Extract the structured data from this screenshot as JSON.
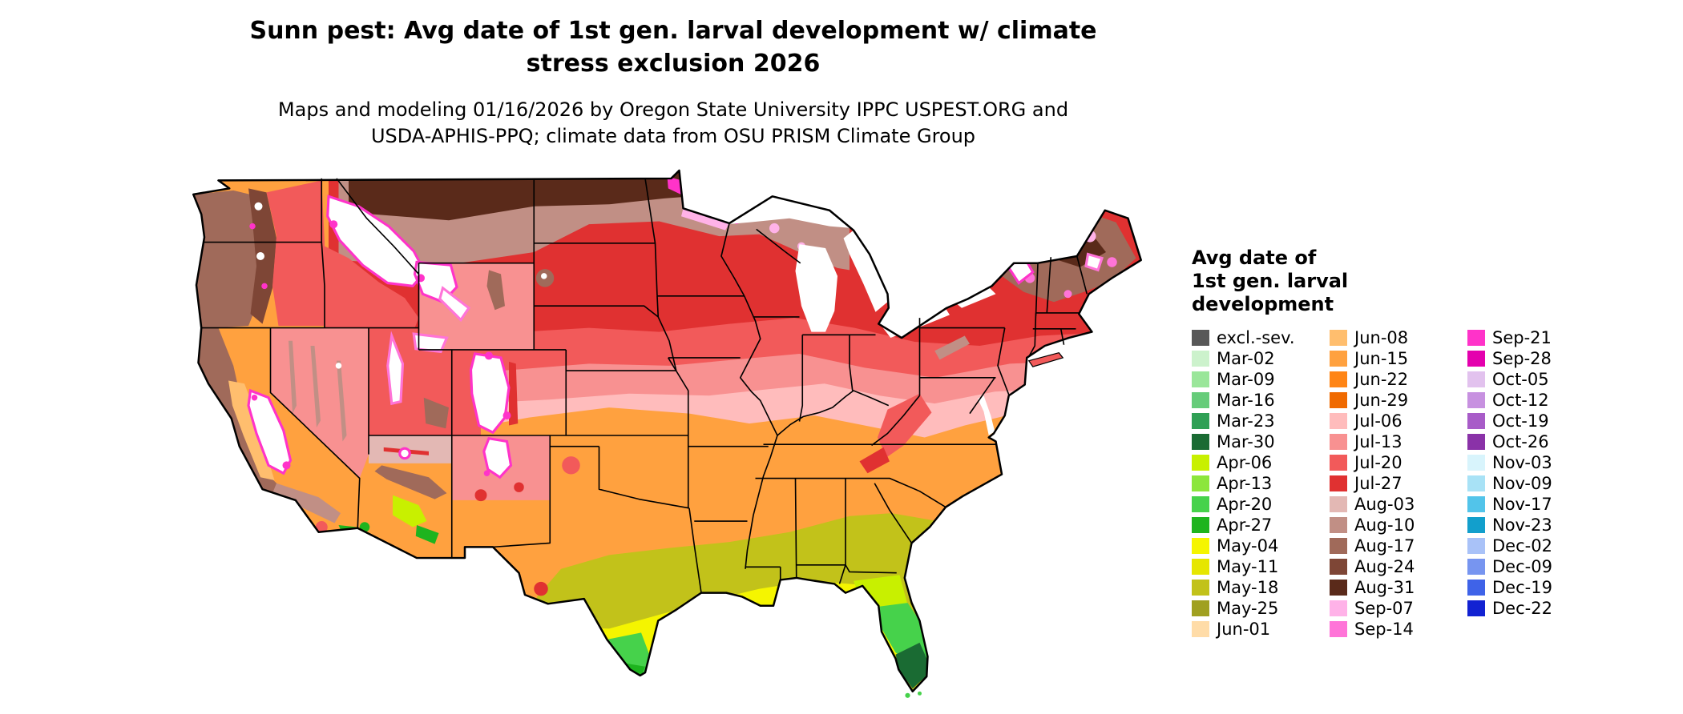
{
  "header": {
    "title_lines": [
      "Sunn pest: Avg date of 1st gen. larval development w/ climate",
      "stress exclusion 2026"
    ],
    "subtitle_lines": [
      "Maps and modeling 01/16/2026 by Oregon State University IPPC USPEST.ORG and",
      "USDA-APHIS-PPQ; climate data from OSU PRISM Climate Group"
    ]
  },
  "legend": {
    "title_lines": [
      "Avg date of",
      "1st gen. larval",
      "development"
    ],
    "columns": [
      {
        "items": [
          {
            "label": "excl.-sev.",
            "key": "excl_sev"
          },
          {
            "label": "Mar-02",
            "key": "mar02"
          },
          {
            "label": "Mar-09",
            "key": "mar09"
          },
          {
            "label": "Mar-16",
            "key": "mar16"
          },
          {
            "label": "Mar-23",
            "key": "mar23"
          },
          {
            "label": "Mar-30",
            "key": "mar30"
          },
          {
            "label": "Apr-06",
            "key": "apr06"
          },
          {
            "label": "Apr-13",
            "key": "apr13"
          },
          {
            "label": "Apr-20",
            "key": "apr20"
          },
          {
            "label": "Apr-27",
            "key": "apr27"
          },
          {
            "label": "May-04",
            "key": "may04"
          },
          {
            "label": "May-11",
            "key": "may11"
          },
          {
            "label": "May-18",
            "key": "may18"
          },
          {
            "label": "May-25",
            "key": "may25"
          },
          {
            "label": "Jun-01",
            "key": "jun01"
          }
        ]
      },
      {
        "items": [
          {
            "label": "Jun-08",
            "key": "jun08"
          },
          {
            "label": "Jun-15",
            "key": "jun15"
          },
          {
            "label": "Jun-22",
            "key": "jun22"
          },
          {
            "label": "Jun-29",
            "key": "jun29"
          },
          {
            "label": "Jul-06",
            "key": "jul06"
          },
          {
            "label": "Jul-13",
            "key": "jul13"
          },
          {
            "label": "Jul-20",
            "key": "jul20"
          },
          {
            "label": "Jul-27",
            "key": "jul27"
          },
          {
            "label": "Aug-03",
            "key": "aug03"
          },
          {
            "label": "Aug-10",
            "key": "aug10"
          },
          {
            "label": "Aug-17",
            "key": "aug17"
          },
          {
            "label": "Aug-24",
            "key": "aug24"
          },
          {
            "label": "Aug-31",
            "key": "aug31"
          },
          {
            "label": "Sep-07",
            "key": "sep07"
          },
          {
            "label": "Sep-14",
            "key": "sep14"
          }
        ]
      },
      {
        "items": [
          {
            "label": "Sep-21",
            "key": "sep21"
          },
          {
            "label": "Sep-28",
            "key": "sep28"
          },
          {
            "label": "Oct-05",
            "key": "oct05"
          },
          {
            "label": "Oct-12",
            "key": "oct12"
          },
          {
            "label": "Oct-19",
            "key": "oct19"
          },
          {
            "label": "Oct-26",
            "key": "oct26"
          },
          {
            "label": "Nov-03",
            "key": "nov03"
          },
          {
            "label": "Nov-09",
            "key": "nov09"
          },
          {
            "label": "Nov-17",
            "key": "nov17"
          },
          {
            "label": "Nov-23",
            "key": "nov23"
          },
          {
            "label": "Dec-02",
            "key": "dec02"
          },
          {
            "label": "Dec-09",
            "key": "dec09"
          },
          {
            "label": "Dec-19",
            "key": "dec19"
          },
          {
            "label": "Dec-22",
            "key": "dec22"
          }
        ]
      }
    ]
  },
  "palette": {
    "excl_sev": "#585858",
    "mar02": "#CCF2CC",
    "mar09": "#9AE69A",
    "mar16": "#66CC7A",
    "mar23": "#2FA055",
    "mar30": "#1A6B33",
    "apr06": "#C8F000",
    "apr13": "#8CE63C",
    "apr20": "#46D24B",
    "apr27": "#1EB41E",
    "may04": "#F5F500",
    "may11": "#E6E600",
    "may18": "#C2C21A",
    "may25": "#A0A020",
    "jun01": "#FFDCA8",
    "jun08": "#FFBE6E",
    "jun15": "#FFA13F",
    "jun22": "#FF8516",
    "jun29": "#F06A00",
    "jul06": "#FFBCBC",
    "jul13": "#F89191",
    "jul20": "#F25A5A",
    "jul27": "#E03131",
    "aug03": "#E3B8B4",
    "aug10": "#C18F85",
    "aug17": "#A06A5A",
    "aug24": "#7E4636",
    "aug31": "#5A2A1A",
    "sep07": "#FFB2E8",
    "sep14": "#FF74D8",
    "sep21": "#FF33C9",
    "sep28": "#E400AE",
    "oct05": "#E2C2EE",
    "oct12": "#C791E0",
    "oct19": "#A85CC8",
    "oct26": "#8A32A8",
    "nov03": "#D8F4FC",
    "nov09": "#A8E2F6",
    "nov17": "#52C4EA",
    "nov23": "#129FCC",
    "dec02": "#A9C2F8",
    "dec09": "#7795F0",
    "dec19": "#3F63E8",
    "dec22": "#1222D2",
    "outline": "#000000"
  }
}
